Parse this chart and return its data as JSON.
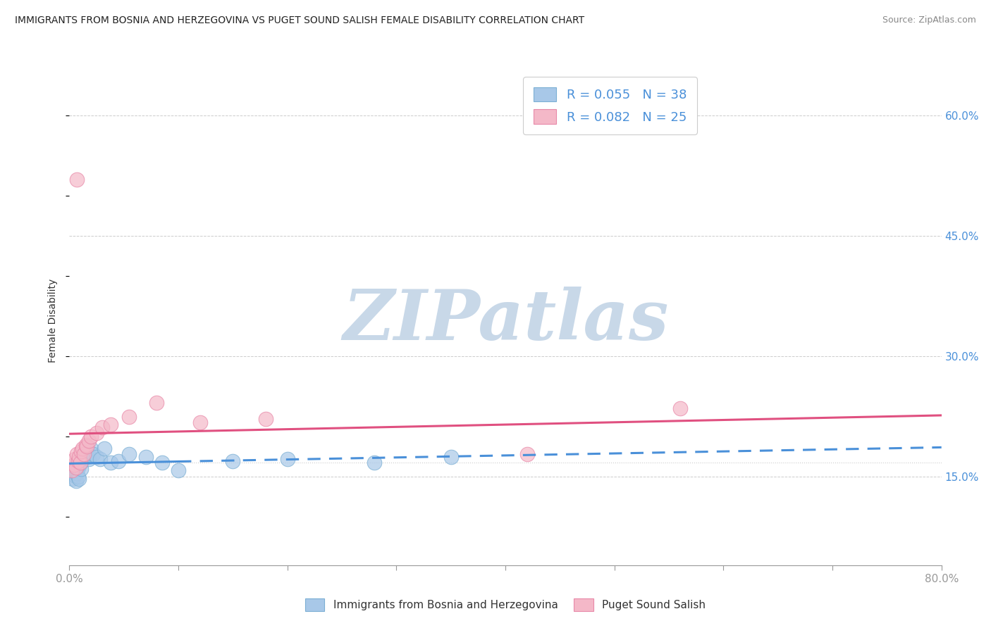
{
  "title": "IMMIGRANTS FROM BOSNIA AND HERZEGOVINA VS PUGET SOUND SALISH FEMALE DISABILITY CORRELATION CHART",
  "source": "Source: ZipAtlas.com",
  "ylabel": "Female Disability",
  "xlim": [
    0.0,
    0.8
  ],
  "ylim": [
    0.04,
    0.65
  ],
  "yticks": [
    0.15,
    0.3,
    0.45,
    0.6
  ],
  "ytick_labels": [
    "15.0%",
    "30.0%",
    "45.0%",
    "60.0%"
  ],
  "xticks": [
    0.0,
    0.1,
    0.2,
    0.3,
    0.4,
    0.5,
    0.6,
    0.7,
    0.8
  ],
  "xtick_labels": [
    "0.0%",
    "",
    "",
    "",
    "",
    "",
    "",
    "",
    "80.0%"
  ],
  "legend_r1": "R = 0.055",
  "legend_n1": "N = 38",
  "legend_r2": "R = 0.082",
  "legend_n2": "N = 25",
  "color_blue": "#a8c8e8",
  "color_blue_edge": "#7bafd4",
  "color_pink": "#f4b8c8",
  "color_pink_edge": "#e888a8",
  "color_blue_line": "#4a90d9",
  "color_pink_line": "#e05080",
  "color_rval": "#4a90d9",
  "color_nval": "#1a3a6a",
  "color_axis_tick": "#4a90d9",
  "watermark_color": "#c8d8e8",
  "background_color": "#ffffff",
  "blue_scatter_x": [
    0.002,
    0.003,
    0.004,
    0.005,
    0.005,
    0.006,
    0.007,
    0.007,
    0.008,
    0.008,
    0.009,
    0.009,
    0.01,
    0.01,
    0.011,
    0.011,
    0.012,
    0.013,
    0.014,
    0.015,
    0.016,
    0.017,
    0.018,
    0.02,
    0.022,
    0.025,
    0.028,
    0.032,
    0.038,
    0.045,
    0.055,
    0.07,
    0.085,
    0.1,
    0.15,
    0.2,
    0.28,
    0.35
  ],
  "blue_scatter_y": [
    0.155,
    0.148,
    0.152,
    0.158,
    0.162,
    0.145,
    0.168,
    0.155,
    0.15,
    0.162,
    0.165,
    0.148,
    0.17,
    0.172,
    0.168,
    0.16,
    0.175,
    0.178,
    0.18,
    0.182,
    0.175,
    0.178,
    0.172,
    0.185,
    0.178,
    0.175,
    0.172,
    0.185,
    0.168,
    0.17,
    0.178,
    0.175,
    0.168,
    0.158,
    0.17,
    0.172,
    0.168,
    0.175
  ],
  "pink_scatter_x": [
    0.002,
    0.004,
    0.005,
    0.006,
    0.007,
    0.008,
    0.009,
    0.01,
    0.011,
    0.012,
    0.013,
    0.015,
    0.016,
    0.018,
    0.02,
    0.025,
    0.03,
    0.038,
    0.055,
    0.08,
    0.12,
    0.18,
    0.42,
    0.56,
    0.007
  ],
  "pink_scatter_y": [
    0.158,
    0.165,
    0.172,
    0.162,
    0.178,
    0.17,
    0.175,
    0.168,
    0.182,
    0.185,
    0.178,
    0.19,
    0.188,
    0.195,
    0.2,
    0.205,
    0.212,
    0.215,
    0.225,
    0.242,
    0.218,
    0.222,
    0.178,
    0.235,
    0.52
  ]
}
